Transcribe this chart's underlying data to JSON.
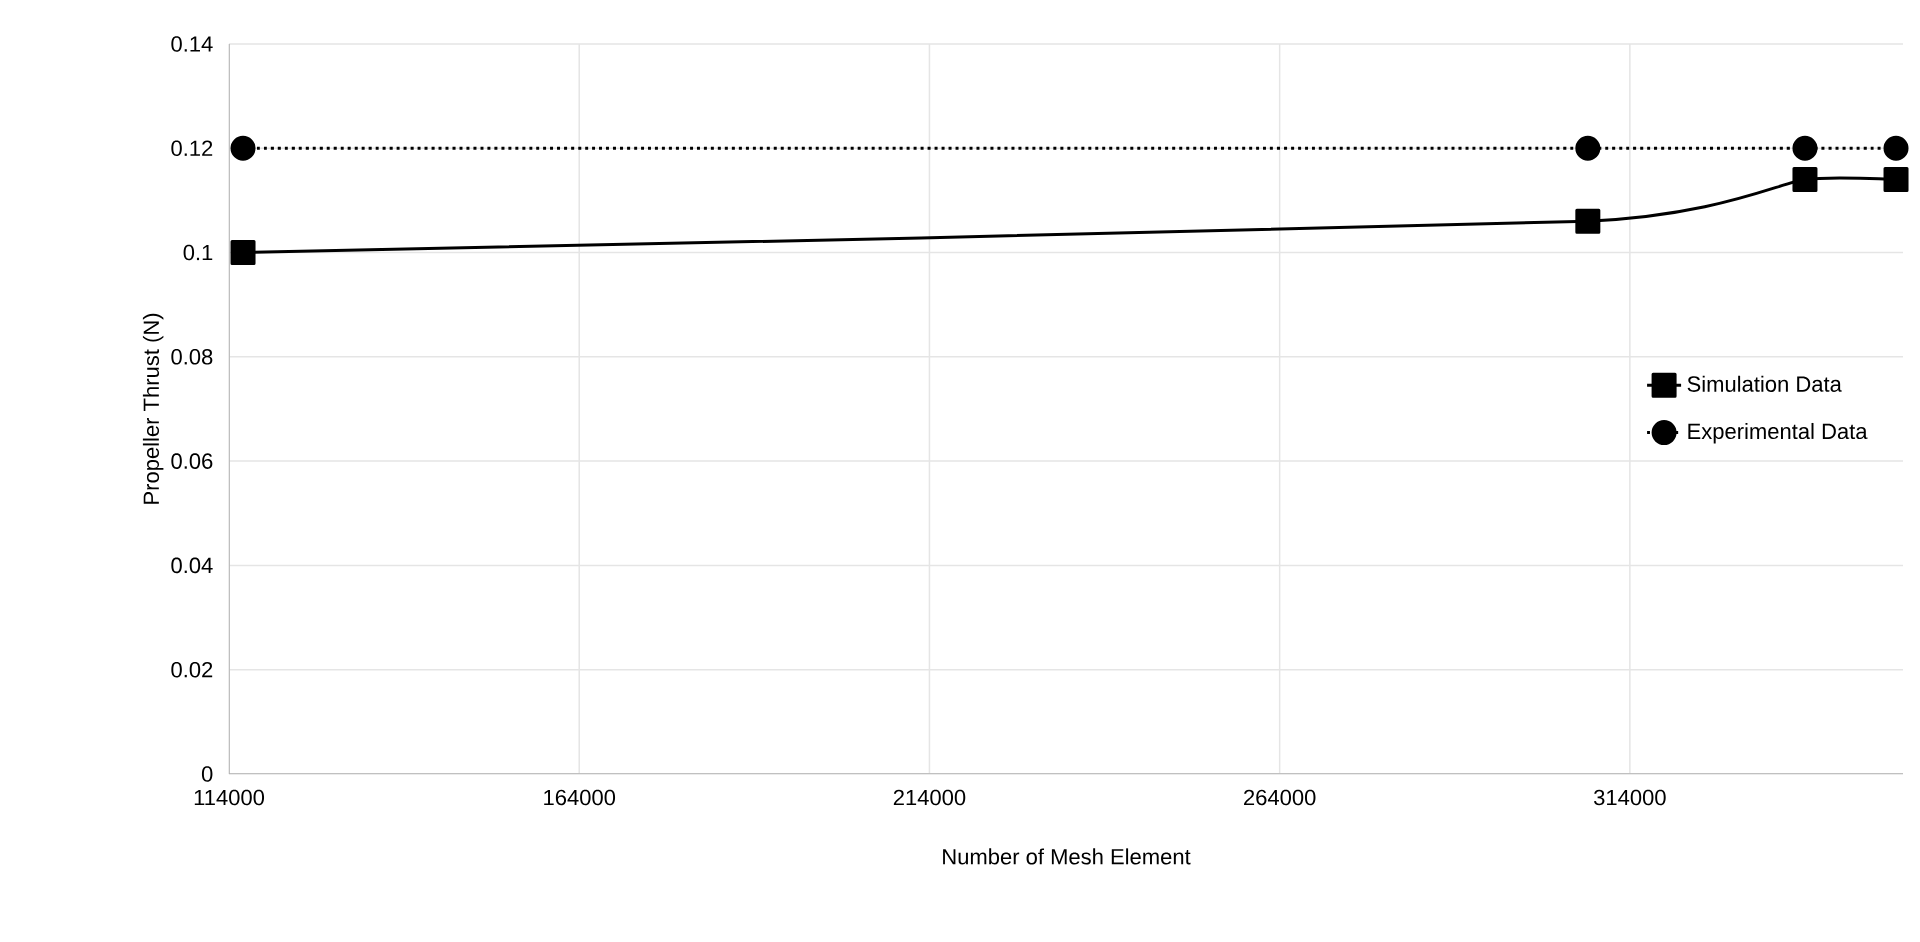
{
  "chart_data": {
    "type": "line",
    "xlabel": "Number of Mesh Element",
    "ylabel": "Propeller Thrust (N)",
    "xlim": [
      114000,
      353000
    ],
    "xticks": [
      114000,
      164000,
      214000,
      264000,
      314000
    ],
    "ylim": [
      0,
      0.14
    ],
    "yticks": [
      0,
      0.02,
      0.04,
      0.06,
      0.08,
      0.1,
      0.12,
      0.14
    ],
    "grid": true,
    "legend": "right",
    "series": [
      {
        "name": "Simulation Data",
        "color": "#000000",
        "marker": "square",
        "line_style": "solid",
        "x": [
          116000,
          308000,
          339000,
          352000
        ],
        "values": [
          0.1,
          0.106,
          0.114,
          0.114
        ]
      },
      {
        "name": "Experimental Data",
        "color": "#000000",
        "marker": "circle",
        "line_style": "dotted",
        "x": [
          116000,
          308000,
          339000,
          352000
        ],
        "values": [
          0.12,
          0.12,
          0.12,
          0.12
        ]
      }
    ]
  }
}
